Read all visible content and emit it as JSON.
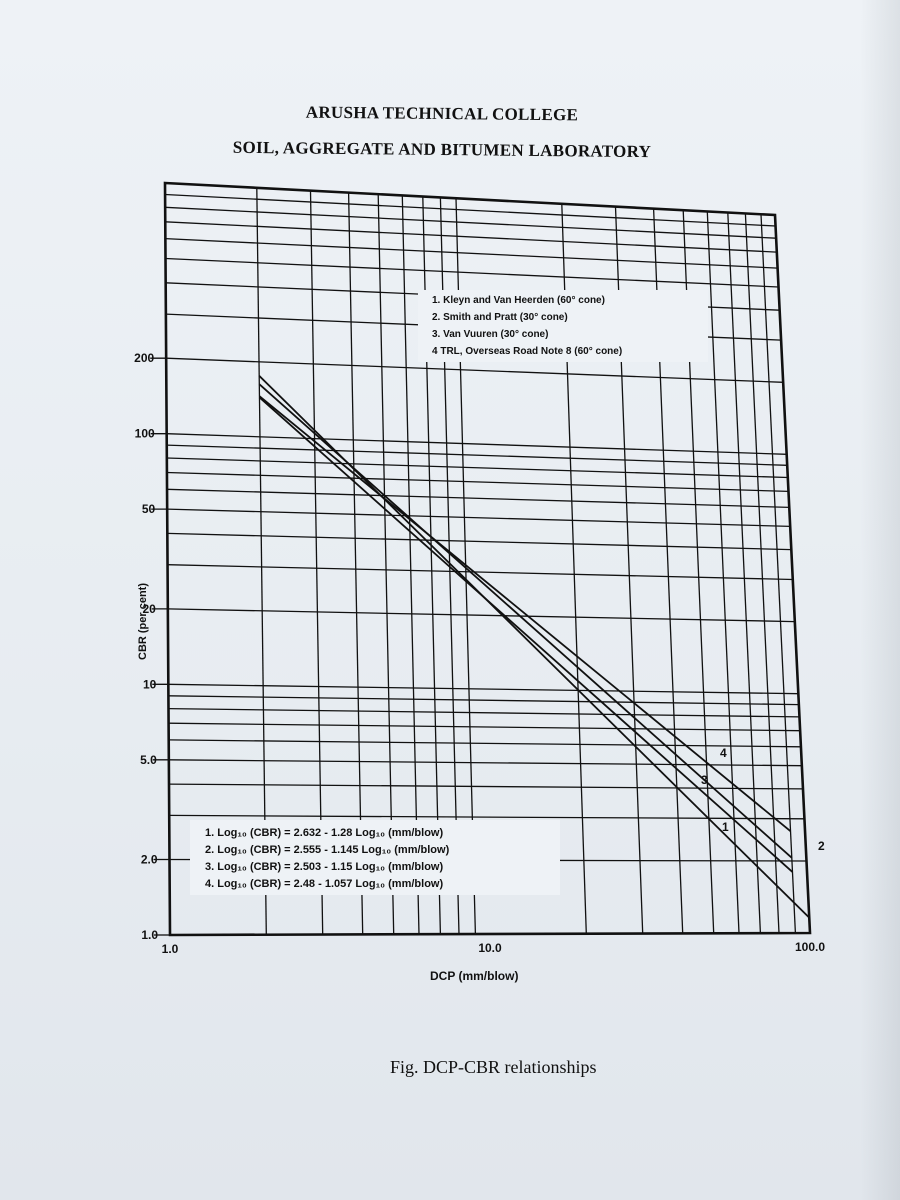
{
  "header": {
    "line1": "ARUSHA TECHNICAL COLLEGE",
    "line2": "SOIL, AGGREGATE AND BITUMEN LABORATORY"
  },
  "caption": "Fig. DCP-CBR relationships",
  "chart_data": {
    "type": "line",
    "title": "",
    "xlabel": "DCP (mm/blow)",
    "ylabel": "CBR (per cent)",
    "x_scale": "log",
    "y_scale": "log",
    "xlim": [
      1.0,
      100.0
    ],
    "ylim": [
      1.0,
      1000
    ],
    "grid": true,
    "x_ticks": [
      {
        "value": 1,
        "label": "1.0"
      },
      {
        "value": 10,
        "label": "10.0"
      },
      {
        "value": 100,
        "label": "100.0"
      }
    ],
    "y_ticks": [
      {
        "value": 1,
        "label": "1.0"
      },
      {
        "value": 2,
        "label": "2.0"
      },
      {
        "value": 5,
        "label": "5.0"
      },
      {
        "value": 10,
        "label": "10"
      },
      {
        "value": 20,
        "label": "20"
      },
      {
        "value": 50,
        "label": "50"
      },
      {
        "value": 100,
        "label": "100"
      },
      {
        "value": 200,
        "label": "200"
      }
    ],
    "legend": {
      "placement": "top-right",
      "entries": [
        "1. Kleyn and Van Heerden (60° cone)",
        "2. Smith and Pratt (30° cone)",
        "3. Van Vuuren (30° cone)",
        "4  TRL, Overseas Road Note 8 (60° cone)"
      ]
    },
    "equations": {
      "placement": "bottom-left",
      "entries": [
        "1.  Log₁₀ (CBR) = 2.632 - 1.28 Log₁₀ (mm/blow)",
        "2.  Log₁₀ (CBR) = 2.555 - 1.145 Log₁₀ (mm/blow)",
        "3.  Log₁₀ (CBR) = 2.503 - 1.15 Log₁₀ (mm/blow)",
        "4.  Log₁₀ (CBR) = 2.48 - 1.057 Log₁₀ (mm/blow)"
      ]
    },
    "series": [
      {
        "name": "1",
        "intercept": 2.632,
        "slope": -1.28,
        "x": [
          2.0,
          100.0
        ],
        "y": [
          175.8,
          1.16
        ]
      },
      {
        "name": "2",
        "intercept": 2.555,
        "slope": -1.145,
        "x": [
          2.0,
          90.0
        ],
        "y": [
          162.7,
          2.06
        ]
      },
      {
        "name": "3",
        "intercept": 2.503,
        "slope": -1.15,
        "x": [
          2.0,
          90.0
        ],
        "y": [
          144.0,
          1.8
        ]
      },
      {
        "name": "4",
        "intercept": 2.48,
        "slope": -1.057,
        "x": [
          2.0,
          90.0
        ],
        "y": [
          145.6,
          2.66
        ]
      }
    ],
    "line_labels": [
      "1",
      "2",
      "3",
      "4"
    ]
  }
}
